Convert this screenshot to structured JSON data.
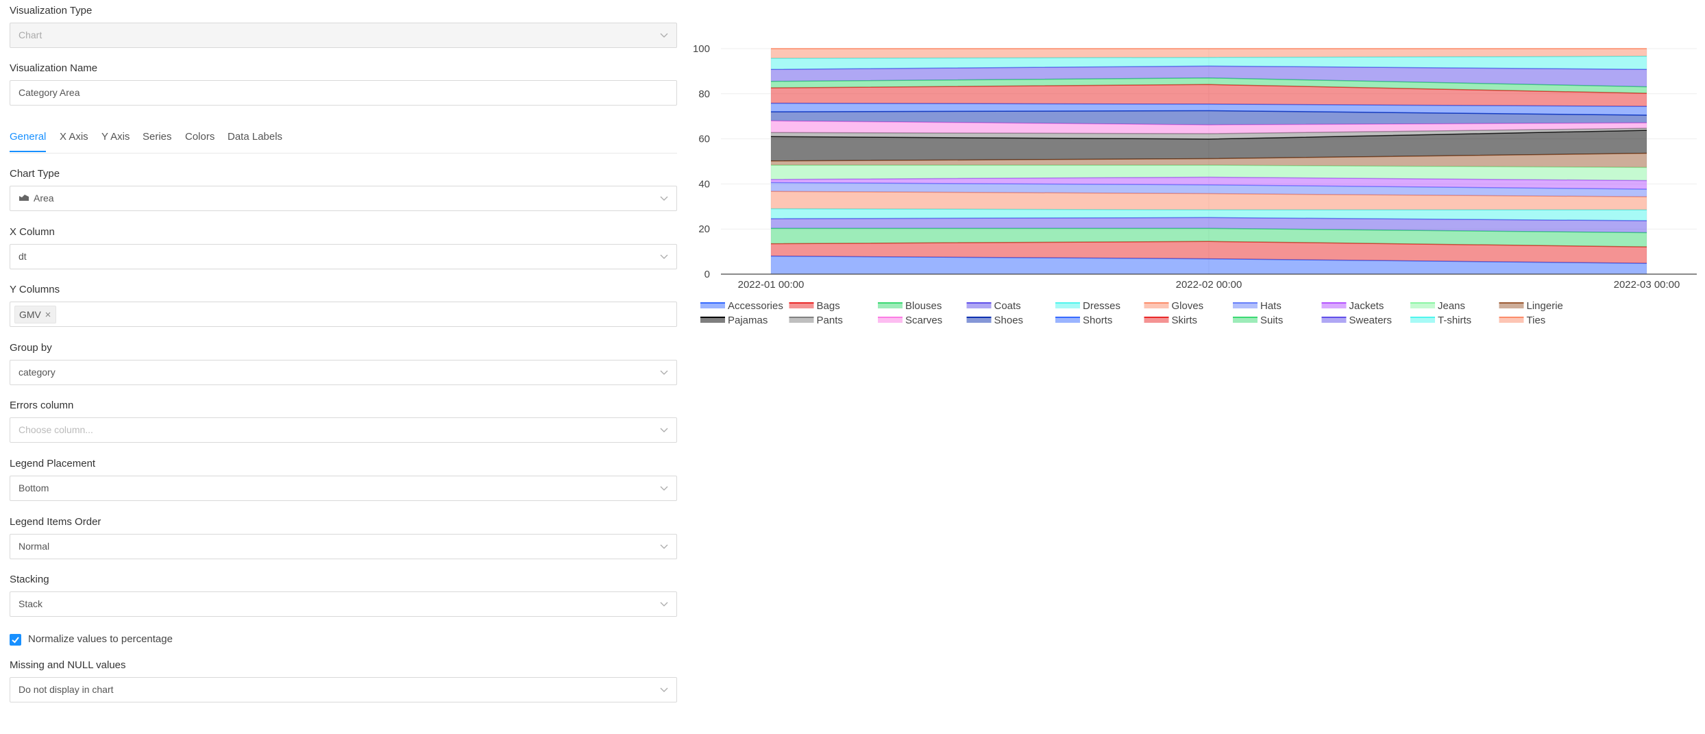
{
  "form": {
    "visualization_type": {
      "label": "Visualization Type",
      "value": "Chart"
    },
    "visualization_name": {
      "label": "Visualization Name",
      "value": "Category Area"
    },
    "tabs": [
      "General",
      "X Axis",
      "Y Axis",
      "Series",
      "Colors",
      "Data Labels"
    ],
    "settings": [
      {
        "label": "Chart Type",
        "value": "Area"
      },
      {
        "label": "X Column",
        "value": "dt"
      },
      {
        "label": "Y Columns",
        "tag": "GMV"
      },
      {
        "label": "Group by",
        "value": "category"
      },
      {
        "label": "Errors column",
        "placeholder": "Choose column..."
      },
      {
        "label": "Legend Placement",
        "value": "Bottom"
      },
      {
        "label": "Legend Items Order",
        "value": "Normal"
      },
      {
        "label": "Stacking",
        "value": "Stack"
      }
    ],
    "normalize": {
      "label": "Normalize values to percentage",
      "checked": true
    },
    "missing_values": {
      "label": "Missing and NULL values",
      "value": "Do not display in chart"
    }
  },
  "chart_data": {
    "type": "area",
    "stacked": true,
    "categories": [
      "2022-01 00:00",
      "2022-02 00:00",
      "2022-03 00:00"
    ],
    "ylim": [
      0,
      100
    ],
    "yticks": [
      0,
      20,
      40,
      60,
      80,
      100
    ],
    "grid": true,
    "legend": "bottom",
    "series": [
      {
        "name": "Accessories",
        "color": "#356aff",
        "values": [
          8,
          6.8,
          4.8
        ]
      },
      {
        "name": "Bags",
        "color": "#e92828",
        "values": [
          5.5,
          7.7,
          7.3
        ]
      },
      {
        "name": "Blouses",
        "color": "#3bd973",
        "values": [
          6.8,
          5.8,
          6.3
        ]
      },
      {
        "name": "Coats",
        "color": "#604fe9",
        "values": [
          4.3,
          4.8,
          5.3
        ]
      },
      {
        "name": "Dresses",
        "color": "#50f5ed",
        "values": [
          4.4,
          3.4,
          4.8
        ]
      },
      {
        "name": "Gloves",
        "color": "#fb8c6a",
        "values": [
          7.7,
          7.2,
          5.8
        ]
      },
      {
        "name": "Hats",
        "color": "#667ffa",
        "values": [
          3.9,
          3.9,
          3.4
        ]
      },
      {
        "name": "Jackets",
        "color": "#b554ff",
        "values": [
          1.4,
          3.4,
          3.8
        ]
      },
      {
        "name": "Jeans",
        "color": "#8bf5a4",
        "values": [
          6.3,
          5.3,
          5.8
        ]
      },
      {
        "name": "Lingerie",
        "color": "#9c5b34",
        "values": [
          1.9,
          2.9,
          6.3
        ]
      },
      {
        "name": "Pajamas",
        "color": "#000000",
        "values": [
          10.8,
          8.7,
          10.2
        ]
      },
      {
        "name": "Pants",
        "color": "#808080",
        "values": [
          1.8,
          2.4,
          0.9
        ]
      },
      {
        "name": "Scarves",
        "color": "#fb7ce4",
        "values": [
          5.2,
          3.9,
          2.4
        ]
      },
      {
        "name": "Shoes",
        "color": "#0c2faf",
        "values": [
          4,
          6.3,
          3.4
        ]
      },
      {
        "name": "Shorts",
        "color": "#356aff",
        "values": [
          3.8,
          2.9,
          3.9
        ]
      },
      {
        "name": "Skirts",
        "color": "#e92828",
        "values": [
          6.8,
          8.7,
          5.8
        ]
      },
      {
        "name": "Suits",
        "color": "#3bd973",
        "values": [
          2.9,
          2.9,
          2.9
        ]
      },
      {
        "name": "Sweaters",
        "color": "#604fe9",
        "values": [
          5.3,
          5.3,
          7.7
        ]
      },
      {
        "name": "T-shirts",
        "color": "#50f5ed",
        "values": [
          4.9,
          3.8,
          5.8
        ]
      },
      {
        "name": "Ties",
        "color": "#fb8c6a",
        "values": [
          4.3,
          3.9,
          3.4
        ]
      }
    ]
  }
}
